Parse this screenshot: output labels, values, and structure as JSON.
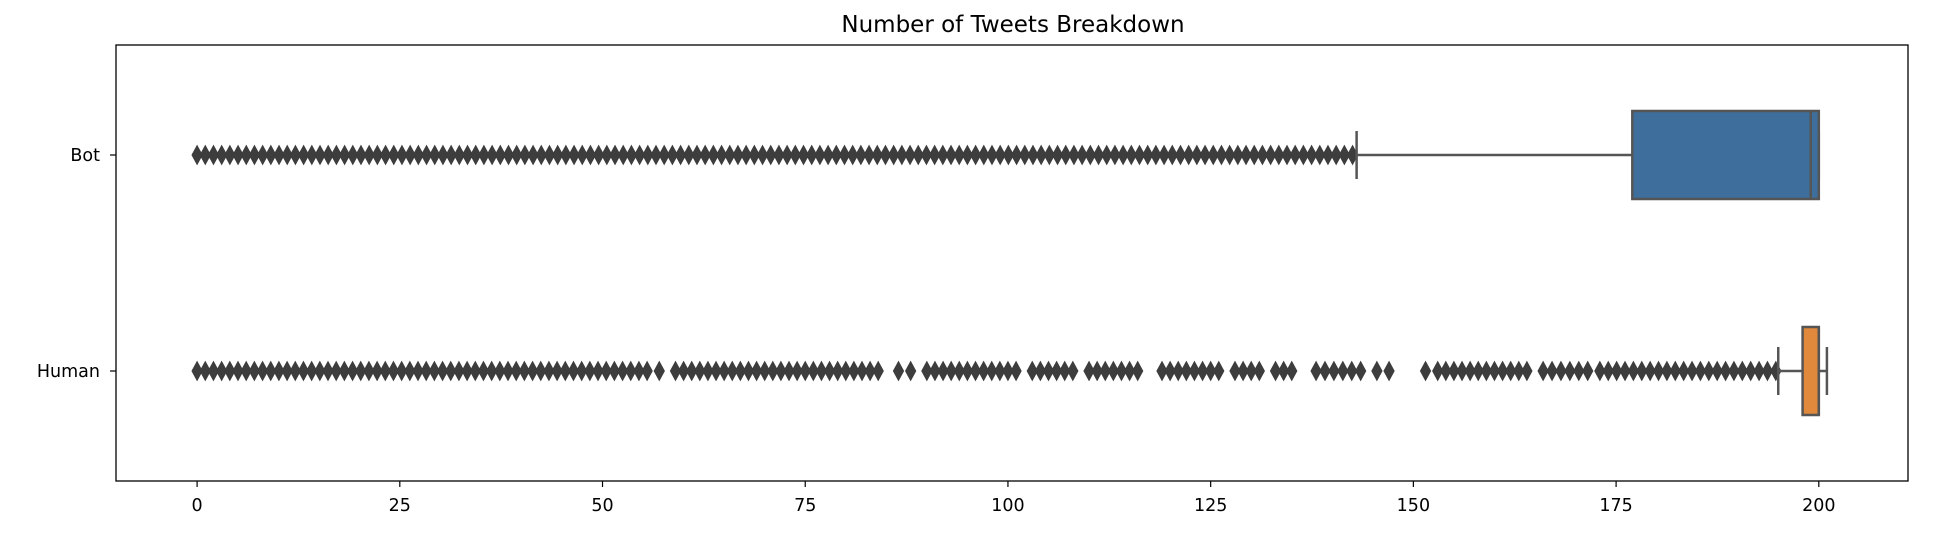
{
  "chart_data": {
    "type": "boxplot",
    "orientation": "horizontal",
    "title": "Number of Tweets Breakdown",
    "xlabel": "",
    "ylabel": "",
    "xlim": [
      -10,
      211
    ],
    "xticks": [
      0,
      25,
      50,
      75,
      100,
      125,
      150,
      175,
      200
    ],
    "grid": false,
    "legend": "none",
    "categories": [
      "Bot",
      "Human"
    ],
    "series": [
      {
        "category": "Bot",
        "color": "#3E6F9C",
        "q1": 177,
        "median": 199,
        "q3": 200,
        "whisker_low": 143,
        "whisker_high": 200,
        "outliers": {
          "segments": [
            [
              0,
              142.5
            ]
          ],
          "gaps": [
            [
              79.7,
              80.9
            ]
          ]
        }
      },
      {
        "category": "Human",
        "color": "#E0883C",
        "q1": 198,
        "median": 200,
        "q3": 200,
        "whisker_low": 195,
        "whisker_high": 201,
        "outliers": {
          "segments": [
            [
              0,
              55.5
            ],
            [
              57,
              57
            ],
            [
              59,
              84
            ],
            [
              86.5,
              88
            ],
            [
              90,
              101
            ],
            [
              103,
              108
            ],
            [
              110,
              116
            ],
            [
              119,
              126
            ],
            [
              128,
              131
            ],
            [
              133,
              135
            ],
            [
              138,
              143.5
            ],
            [
              145.5,
              147
            ],
            [
              151.5,
              151.5
            ],
            [
              153,
              164
            ],
            [
              166,
              171.5
            ],
            [
              173,
              194.7
            ]
          ],
          "gaps": []
        }
      }
    ]
  }
}
